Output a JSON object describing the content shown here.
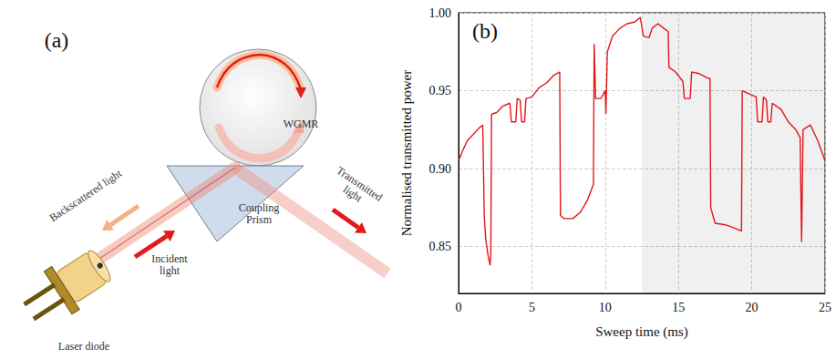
{
  "diagram": {
    "panel_label": "(a)",
    "labels": {
      "resonator": "WGMR",
      "backscattered": "Backscattered light",
      "transmitted": "Transmitted light",
      "incident": "Incident light",
      "prism": "Coupling Prism",
      "source": "Laser diode"
    }
  },
  "chart_data": {
    "type": "line",
    "panel_label": "(b)",
    "x_label": "Sweep time (ms)",
    "y_label": "Normalised transmitted power",
    "x": [
      0,
      0.3,
      0.6,
      1.0,
      1.4,
      1.65,
      1.7,
      1.75,
      1.85,
      2.0,
      2.15,
      2.2,
      2.25,
      2.6,
      3.0,
      3.5,
      3.6,
      3.9,
      4.0,
      4.2,
      4.3,
      4.5,
      4.6,
      5.0,
      5.5,
      6.0,
      6.5,
      6.9,
      6.95,
      7.2,
      7.8,
      8.3,
      8.8,
      9.2,
      9.25,
      9.35,
      9.7,
      10.0,
      10.05,
      10.15,
      10.5,
      11.0,
      11.5,
      12.0,
      12.4,
      12.6,
      13.0,
      13.2,
      13.6,
      14.0,
      14.3,
      14.35,
      14.8,
      15.3,
      15.4,
      15.8,
      15.9,
      16.4,
      17.0,
      17.15,
      17.2,
      17.5,
      18.2,
      18.8,
      19.3,
      19.35,
      19.8,
      20.3,
      20.4,
      20.7,
      20.8,
      21.0,
      21.1,
      21.3,
      21.4,
      22.0,
      22.5,
      23.0,
      23.3,
      23.4,
      23.5,
      24.0,
      24.5,
      25.0
    ],
    "values": [
      0.905,
      0.912,
      0.918,
      0.922,
      0.926,
      0.928,
      0.9,
      0.87,
      0.855,
      0.845,
      0.838,
      0.845,
      0.935,
      0.936,
      0.94,
      0.942,
      0.93,
      0.93,
      0.945,
      0.944,
      0.93,
      0.93,
      0.945,
      0.946,
      0.952,
      0.955,
      0.96,
      0.962,
      0.87,
      0.868,
      0.868,
      0.872,
      0.88,
      0.89,
      0.98,
      0.945,
      0.945,
      0.95,
      0.935,
      0.975,
      0.985,
      0.99,
      0.993,
      0.994,
      0.997,
      0.985,
      0.984,
      0.99,
      0.993,
      0.99,
      0.988,
      0.965,
      0.962,
      0.956,
      0.945,
      0.945,
      0.962,
      0.961,
      0.958,
      0.958,
      0.875,
      0.865,
      0.864,
      0.862,
      0.86,
      0.95,
      0.948,
      0.946,
      0.93,
      0.93,
      0.946,
      0.944,
      0.93,
      0.93,
      0.942,
      0.938,
      0.93,
      0.925,
      0.92,
      0.853,
      0.925,
      0.928,
      0.918,
      0.905
    ],
    "color": "#e3161b",
    "xlim": [
      0,
      25
    ],
    "xticks": [
      0,
      5,
      10,
      15,
      20,
      25
    ],
    "ylim": [
      0.82,
      1.0
    ],
    "yticks": [
      0.85,
      {
        "value": 0.9,
        "label": "0.90"
      },
      0.95,
      {
        "value": 1.0,
        "label": "1.00"
      }
    ],
    "grid": true,
    "shaded_x": [
      12.5,
      25
    ]
  }
}
